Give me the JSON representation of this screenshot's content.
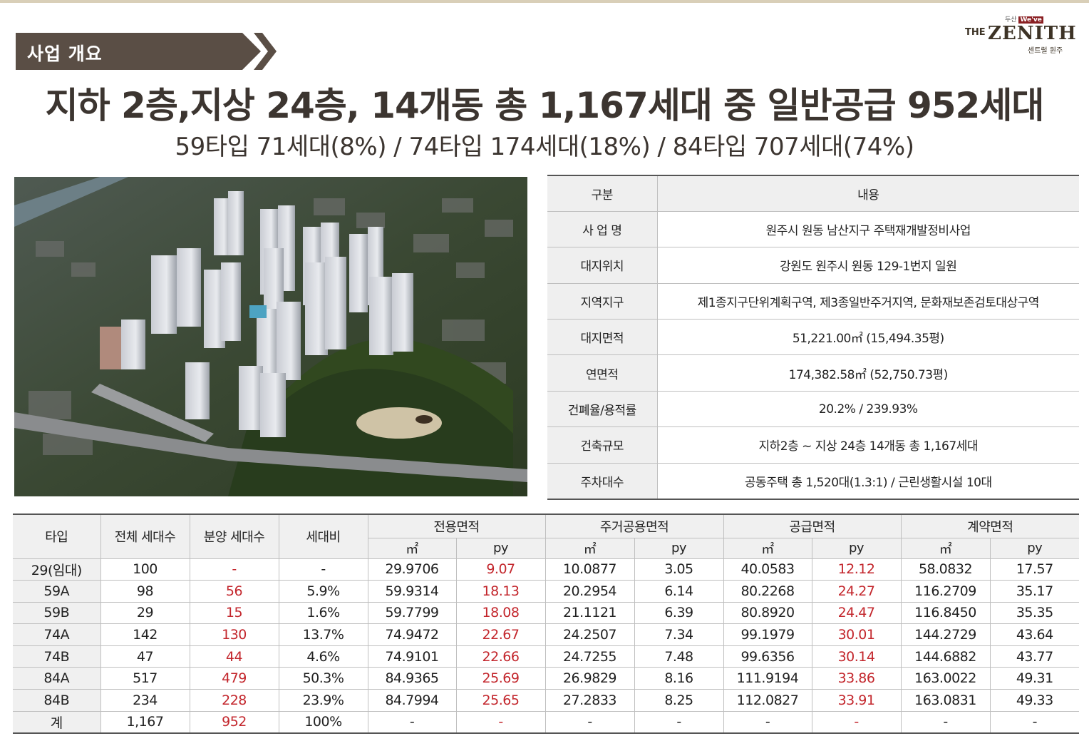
{
  "section_badge": "사업 개요",
  "logo": {
    "brand_small_a": "두산",
    "brand_small_b": "We've",
    "the": "THE",
    "zenith": "ZENITH",
    "sub": "센트럴 원주"
  },
  "headline": "지하 2층,지상 24층, 14개동 총 1,167세대 중 일반공급 952세대",
  "subline": "59타입 71세대(8%) / 74타입 174세대(18%) / 84타입 707세대(74%)",
  "overview": {
    "header_key": "구분",
    "header_value": "내용",
    "rows": [
      {
        "key": "사 업 명",
        "value": "원주시 원동 남산지구 주택재개발정비사업"
      },
      {
        "key": "대지위치",
        "value": "강원도 원주시 원동 129-1번지 일원"
      },
      {
        "key": "지역지구",
        "value": "제1종지구단위계획구역, 제3종일반주거지역, 문화재보존검토대상구역"
      },
      {
        "key": "대지면적",
        "value": "51,221.00㎡ (15,494.35평)"
      },
      {
        "key": "연면적",
        "value": "174,382.58㎡ (52,750.73평)"
      },
      {
        "key": "건폐율/용적률",
        "value": "20.2% / 239.93%"
      },
      {
        "key": "건축규모",
        "value": "지하2층 ~ 지상 24층 14개동 총 1,167세대"
      },
      {
        "key": "주차대수",
        "value": "공동주택 총 1,520대(1.3:1) / 근린생활시설 10대"
      }
    ]
  },
  "area_table": {
    "headers": {
      "type": "타입",
      "total": "전체 세대수",
      "sale": "분양 세대수",
      "ratio": "세대비",
      "exclusive": "전용면적",
      "residential_common": "주거공용면적",
      "supply": "공급면적",
      "contract": "계약면적",
      "sqm": "㎡",
      "py": "py"
    },
    "rows": [
      [
        "29(임대)",
        "100",
        "-",
        "-",
        "29.9706",
        "9.07",
        "10.0877",
        "3.05",
        "40.0583",
        "12.12",
        "58.0832",
        "17.57"
      ],
      [
        "59A",
        "98",
        "56",
        "5.9%",
        "59.9314",
        "18.13",
        "20.2954",
        "6.14",
        "80.2268",
        "24.27",
        "116.2709",
        "35.17"
      ],
      [
        "59B",
        "29",
        "15",
        "1.6%",
        "59.7799",
        "18.08",
        "21.1121",
        "6.39",
        "80.8920",
        "24.47",
        "116.8450",
        "35.35"
      ],
      [
        "74A",
        "142",
        "130",
        "13.7%",
        "74.9472",
        "22.67",
        "24.2507",
        "7.34",
        "99.1979",
        "30.01",
        "144.2729",
        "43.64"
      ],
      [
        "74B",
        "47",
        "44",
        "4.6%",
        "74.9101",
        "22.66",
        "24.7255",
        "7.48",
        "99.6356",
        "30.14",
        "144.6882",
        "43.77"
      ],
      [
        "84A",
        "517",
        "479",
        "50.3%",
        "84.9365",
        "25.69",
        "26.9829",
        "8.16",
        "111.9194",
        "33.86",
        "163.0022",
        "49.31"
      ],
      [
        "84B",
        "234",
        "228",
        "23.9%",
        "84.7994",
        "25.65",
        "27.2833",
        "8.25",
        "112.0827",
        "33.91",
        "163.0831",
        "49.33"
      ],
      [
        "계",
        "1,167",
        "952",
        "100%",
        "-",
        "-",
        "-",
        "-",
        "-",
        "-",
        "-",
        "-"
      ]
    ]
  },
  "colors": {
    "badge": "#5a4e45",
    "headline": "#3c3530",
    "highlight_red": "#c3262c",
    "header_bg": "#efefef"
  }
}
